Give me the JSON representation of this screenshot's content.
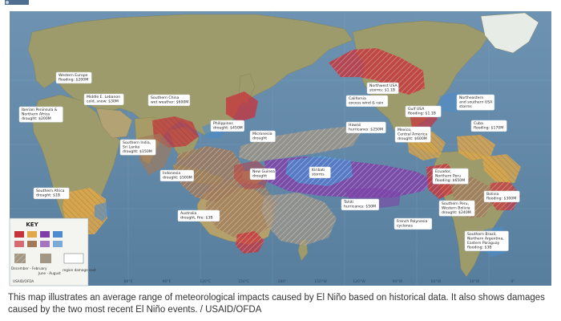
{
  "map": {
    "labels": [
      "Western Europe\nflooding: $200M",
      "Middle E. Lebanon\ncold, snow: $30M",
      "Iberian Peninsula &\nNorthern Africa\ndrought: $200M",
      "Southern China\nwet weather: $600M",
      "Southern India,\nSri Lanka\ndrought: $150M",
      "Philippines\ndrought: $450M",
      "Micronesia\ndrought",
      "Indonesia\ndrought: $500M",
      "New Guinea\ndrought",
      "Australia\ndrought, fire: $3B",
      "Southern Africa\ndrought: $1B",
      "Hawaii\nhurricanes: $250M",
      "Kiribati\nstorms",
      "Tahiti\nhurricanes: $50M",
      "Northwest USA\nstorms: $1.1B",
      "California\nexcess wind & rain",
      "Gulf USA\nflooding: $1.1B",
      "Northeastern\nand southern USA\nstorms",
      "Mexico,\nCentral America\ndrought: $600M",
      "Cuba\nflooding: $170M",
      "Ecuador,\nNorthern Peru\nflooding: $650M",
      "Bolivia\nflooding: $300M",
      "Southern Peru,\nWestern Bolivia\ndrought: $240M",
      "French Polynesia\ncyclones",
      "Southern Brazil,\nNorthern Argentina,\nEastern Paraguay\nflooding: $3B"
    ],
    "key_title": "KEY",
    "key_period_labels": [
      "December - February",
      "June - August"
    ],
    "key_damage_label": "region damage cost",
    "key_source": "USAID/OFDA",
    "degree_labels": [
      "60°E",
      "90°E",
      "120°E",
      "150°E",
      "180°",
      "150°W",
      "120°W",
      "90°W",
      "60°W",
      "30°W",
      "0°"
    ],
    "colors": {
      "ocean": "#5f86a6",
      "land": "#9b9a6c",
      "drought": "#e0a84a",
      "wet": "#c8323a",
      "storm": "#7f3fa8",
      "cold": "#4a8ccf",
      "brown": "#a07a5a",
      "gray": "#a39684"
    }
  },
  "caption": "This map illustrates an average range of meteorological impacts caused by El Niño based on historical data. It also shows damages caused by the two most recent El Niño events. / USAID/OFDA"
}
